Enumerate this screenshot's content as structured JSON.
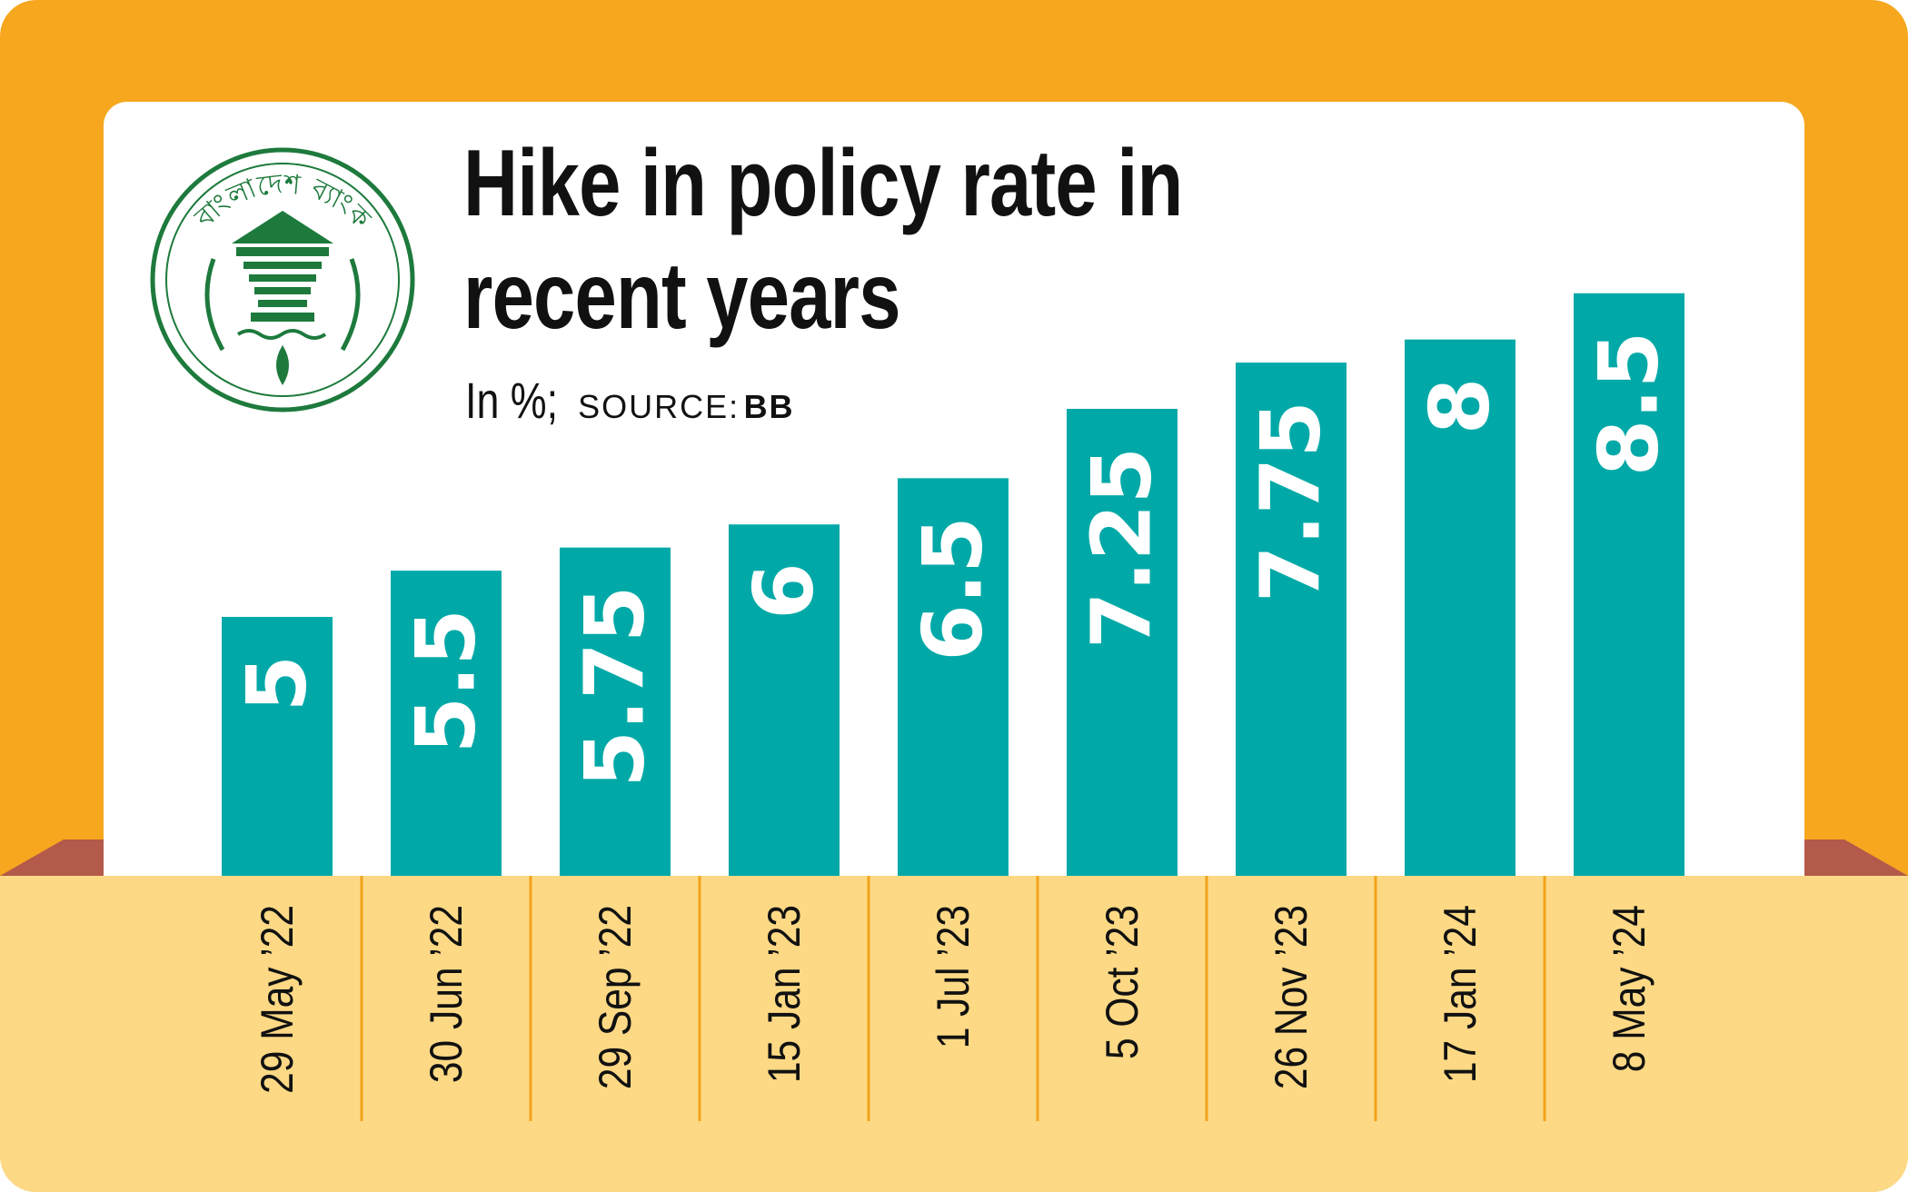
{
  "chart_data": {
    "type": "bar",
    "title": "Hike in policy rate in recent years",
    "unit_note": "In %;",
    "source_label": "SOURCE:",
    "source": "BB",
    "logo_text": "বাংলাদেশ ব্যাংক",
    "categories": [
      "29 May ’22",
      "30 Jun ’22",
      "29 Sep ’22",
      "15 Jan ’23",
      "1 Jul ’23",
      "5 Oct ’23",
      "26 Nov ’23",
      "17 Jan ’24",
      "8 May ’24"
    ],
    "values": [
      5,
      5.5,
      5.75,
      6,
      6.5,
      7.25,
      7.75,
      8,
      8.5
    ],
    "color": "#00a9a7",
    "ylim": [
      2.2,
      9.5
    ]
  }
}
